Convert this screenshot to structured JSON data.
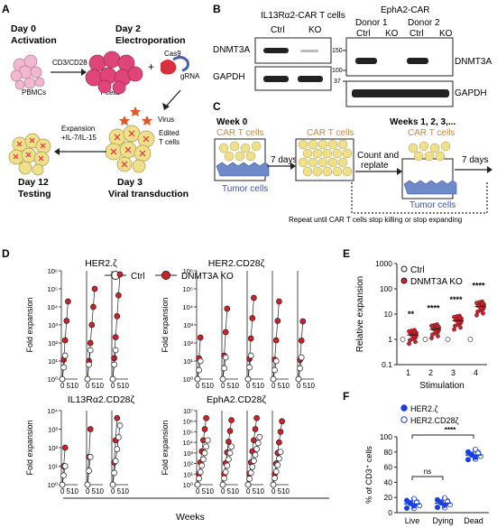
{
  "panels": {
    "a": "A",
    "b": "B",
    "c": "C",
    "d": "D",
    "e": "E",
    "f": "F"
  },
  "panelA": {
    "day0": "Day 0",
    "activation": "Activation",
    "day2": "Day 2",
    "electroporation": "Electroporation",
    "cd3cd28": "CD3/CD28",
    "pbmcs": "PBMCs",
    "tcells": "T cells",
    "plus": "+",
    "cas9": "Cas9",
    "grna": "gRNA",
    "virus": "Virus",
    "edited": "Edited",
    "tcells2": "T cells",
    "expansion": "Expansion",
    "cytokines": "+IL-7/IL-15",
    "day3": "Day 3",
    "viral": "Viral transduction",
    "day12": "Day 12",
    "testing": "Testing",
    "colors": {
      "pbmc": "#f2b8cf",
      "tcell": "#e0457a",
      "edited": "#f1e08a",
      "virus": "#e05a2b",
      "cas9": "#d9303d",
      "grna": "#4a61b0"
    }
  },
  "panelB": {
    "left_title": "IL13Rα2-CAR T cells",
    "right_title": "EphA2-CAR",
    "donor1": "Donor 1",
    "donor2": "Donor 2",
    "ctrl": "Ctrl",
    "ko": "KO",
    "dnmt3a": "DNMT3A",
    "gapdh": "GAPDH",
    "mw150": "150",
    "mw100": "100",
    "mw37": "37"
  },
  "panelC": {
    "week0": "Week 0",
    "car": "CAR T cells",
    "tumor": "Tumor cells",
    "seven_days": "7 days",
    "count": "Count and",
    "replate": "replate",
    "weeks": "Weeks 1, 2, 3,...",
    "repeat": "Repeat until CAR T cells stop killing or stop expanding",
    "colors": {
      "car": "#c8873e",
      "tumor": "#3b55a8"
    }
  },
  "panelD": {
    "ylabel": "Fold expansion",
    "xlabel": "Weeks",
    "legend_ctrl": "Ctrl",
    "legend_ko": "DNMT3A KO",
    "xtick_text": "0 510",
    "colors": {
      "ko": "#d32027",
      "ctrl": "#ffffff"
    },
    "groups": [
      {
        "title": "HER2.ζ",
        "ymax_exp": 6,
        "ticks": [
          "10⁰",
          "10¹",
          "10²",
          "10³",
          "10⁴",
          "10⁵",
          "10⁶"
        ],
        "ctrl_ymax": [
          1.3,
          1.6,
          1.6
        ],
        "ko_ymax": [
          4.3,
          5.0,
          5.8
        ]
      },
      {
        "title": "HER2.CD28ζ",
        "ymax_exp": 6,
        "ticks": [
          "10⁰",
          "10¹",
          "10²",
          "10³",
          "10⁴",
          "10⁵",
          "10⁶"
        ],
        "ctrl_ymax": [
          1.0,
          1.2,
          1.3,
          1.0,
          1.2
        ],
        "ko_ymax": [
          2.3,
          3.9,
          4.5,
          4.3,
          3.2
        ]
      },
      {
        "title": "IL13Rα2.CD28ζ",
        "ymax_exp": 4,
        "ticks": [
          "10⁰",
          "10¹",
          "10²",
          "10³",
          "10⁴"
        ],
        "ctrl_ymax": [
          1.0,
          1.5,
          3.2
        ],
        "ko_ymax": [
          2.0,
          3.0,
          3.6
        ]
      },
      {
        "title": "EphA2.CD28ζ",
        "ymax_exp": 7,
        "ticks": [
          "10⁰",
          "10¹",
          "10²",
          "10³",
          "10⁴",
          "10⁵",
          "10⁶",
          "10⁷"
        ],
        "ctrl_ymax": [
          4.2,
          3.6,
          4.5,
          3.1
        ],
        "ko_ymax": [
          6.3,
          6.1,
          6.3,
          6.0
        ]
      }
    ]
  },
  "chart_data": [
    {
      "type": "scatter",
      "title": "",
      "xlabel": "Stimulation",
      "ylabel": "Relative expansion",
      "yscale": "log",
      "ylim": [
        0.1,
        1000
      ],
      "yticks": [
        "0.1",
        "1",
        "10",
        "100",
        "1000"
      ],
      "categories": [
        "1",
        "2",
        "3",
        "4"
      ],
      "legend": "top-left",
      "series": [
        {
          "name": "Ctrl",
          "color": "#ffffff",
          "values": [
            1,
            1,
            1,
            1
          ]
        },
        {
          "name": "DNMT3A KO",
          "color": "#d32027",
          "values": [
            1.5,
            2.5,
            5.5,
            20
          ]
        }
      ],
      "significance": [
        "**",
        "****",
        "****",
        "****"
      ]
    },
    {
      "type": "scatter",
      "title": "",
      "xlabel": "",
      "ylabel": "% of CD3⁺ cells",
      "ylim": [
        0,
        100
      ],
      "yticks": [
        "0",
        "20",
        "40",
        "60",
        "80",
        "100"
      ],
      "categories": [
        "Live",
        "Dying",
        "Dead"
      ],
      "legend": "top-left",
      "series": [
        {
          "name": "HER2.ζ",
          "color": "#1a3ee0",
          "values": [
            11,
            12,
            75
          ]
        },
        {
          "name": "HER2.CD28ζ",
          "color": "#ffffff",
          "values": [
            12,
            13,
            77
          ]
        }
      ],
      "significance": [
        {
          "label": "ns"
        },
        {
          "label": "****"
        }
      ]
    }
  ]
}
